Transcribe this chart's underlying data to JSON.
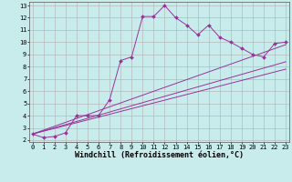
{
  "xlabel": "Windchill (Refroidissement éolien,°C)",
  "bg_color": "#c8ecec",
  "grid_color": "#b0b0b0",
  "line_color": "#993399",
  "line1_x": [
    0,
    1,
    2,
    3,
    4,
    5,
    6,
    7,
    8,
    9,
    10,
    11,
    12,
    13,
    14,
    15,
    16,
    17,
    18,
    19,
    20,
    21,
    22,
    23
  ],
  "line1_y": [
    2.5,
    2.2,
    2.3,
    2.6,
    4.0,
    4.0,
    4.0,
    5.3,
    8.5,
    8.8,
    12.1,
    12.1,
    13.0,
    12.0,
    11.4,
    10.6,
    11.4,
    10.4,
    10.0,
    9.5,
    9.0,
    8.8,
    9.9,
    10.0
  ],
  "line2_x": [
    0,
    23
  ],
  "line2_y": [
    2.5,
    9.8
  ],
  "line3_x": [
    0,
    23
  ],
  "line3_y": [
    2.5,
    8.4
  ],
  "line4_x": [
    0,
    23
  ],
  "line4_y": [
    2.5,
    7.8
  ],
  "xlim": [
    -0.3,
    23.3
  ],
  "ylim": [
    1.85,
    13.3
  ],
  "xticks": [
    0,
    1,
    2,
    3,
    4,
    5,
    6,
    7,
    8,
    9,
    10,
    11,
    12,
    13,
    14,
    15,
    16,
    17,
    18,
    19,
    20,
    21,
    22,
    23
  ],
  "yticks": [
    2,
    3,
    4,
    5,
    6,
    7,
    8,
    9,
    10,
    11,
    12,
    13
  ],
  "tick_fontsize": 5.0,
  "xlabel_fontsize": 6.0
}
